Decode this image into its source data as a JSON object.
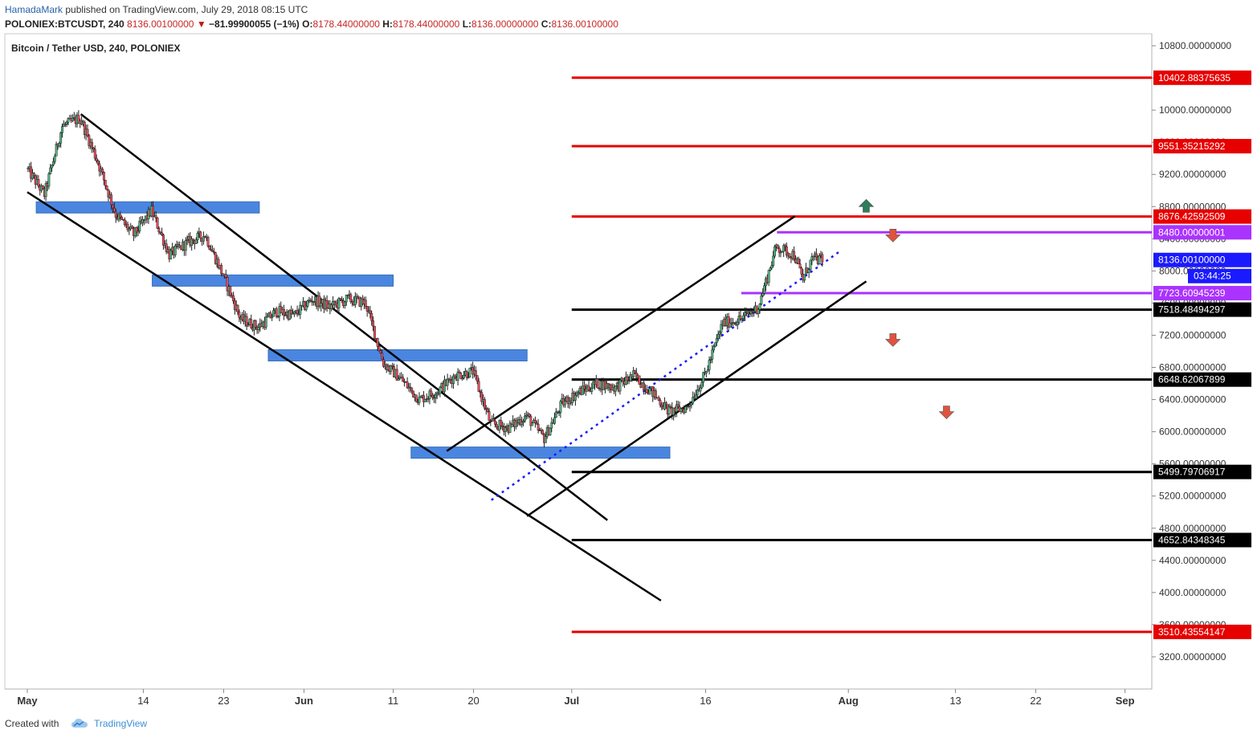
{
  "header": {
    "author": "HamadaMark",
    "published": "published on TradingView.com, July 29, 2018 08:15 UTC",
    "symbol": "POLONIEX:BTCUSDT, 240",
    "last": "8136.00100000",
    "change": "−81.99900055 (−1%)",
    "open_label": "O:",
    "open": "8178.44000000",
    "high_label": "H:",
    "high": "8178.44000000",
    "low_label": "L:",
    "low": "8136.00000000",
    "close_label": "C:",
    "close": "8136.00100000"
  },
  "footer": {
    "created_with": "Created with",
    "brand": "TradingView"
  },
  "chart_data": {
    "type": "candlestick",
    "title": "Bitcoin / Tether USD, 240, POLONIEX",
    "ylim": [
      2800,
      10950
    ],
    "xlim": [
      "2018-05-01",
      "2018-09-04"
    ],
    "y_ticks": [
      "10800.00000000",
      "10400.00000000",
      "10000.00000000",
      "9600.00000000",
      "9200.00000000",
      "8800.00000000",
      "8400.00000000",
      "8000.00000000",
      "7600.00000000",
      "7200.00000000",
      "6800.00000000",
      "6400.00000000",
      "6000.00000000",
      "5600.00000000",
      "5200.00000000",
      "4800.00000000",
      "4400.00000000",
      "4000.00000000",
      "3600.00000000",
      "3200.00000000"
    ],
    "x_ticks": [
      {
        "date": "2018-05-01",
        "label": "May"
      },
      {
        "date": "2018-05-14",
        "label": "14"
      },
      {
        "date": "2018-05-23",
        "label": "23"
      },
      {
        "date": "2018-06-01",
        "label": "Jun"
      },
      {
        "date": "2018-06-11",
        "label": "11"
      },
      {
        "date": "2018-06-20",
        "label": "20"
      },
      {
        "date": "2018-07-01",
        "label": "Jul"
      },
      {
        "date": "2018-07-16",
        "label": "16"
      },
      {
        "date": "2018-08-01",
        "label": "Aug"
      },
      {
        "date": "2018-08-13",
        "label": "13"
      },
      {
        "date": "2018-08-22",
        "label": "22"
      },
      {
        "date": "2018-09-01",
        "label": "Sep"
      }
    ],
    "price_path": [
      [
        "2018-05-01",
        9280
      ],
      [
        "2018-05-03",
        8950
      ],
      [
        "2018-05-05",
        9800
      ],
      [
        "2018-05-07",
        9900
      ],
      [
        "2018-05-09",
        9350
      ],
      [
        "2018-05-11",
        8700
      ],
      [
        "2018-05-13",
        8450
      ],
      [
        "2018-05-15",
        8750
      ],
      [
        "2018-05-17",
        8200
      ],
      [
        "2018-05-19",
        8350
      ],
      [
        "2018-05-21",
        8450
      ],
      [
        "2018-05-23",
        7950
      ],
      [
        "2018-05-25",
        7400
      ],
      [
        "2018-05-27",
        7300
      ],
      [
        "2018-05-29",
        7500
      ],
      [
        "2018-05-31",
        7450
      ],
      [
        "2018-06-02",
        7650
      ],
      [
        "2018-06-04",
        7550
      ],
      [
        "2018-06-06",
        7650
      ],
      [
        "2018-06-08",
        7600
      ],
      [
        "2018-06-10",
        6850
      ],
      [
        "2018-06-12",
        6650
      ],
      [
        "2018-06-14",
        6400
      ],
      [
        "2018-06-16",
        6500
      ],
      [
        "2018-06-18",
        6700
      ],
      [
        "2018-06-20",
        6750
      ],
      [
        "2018-06-22",
        6100
      ],
      [
        "2018-06-24",
        6050
      ],
      [
        "2018-06-26",
        6200
      ],
      [
        "2018-06-28",
        5920
      ],
      [
        "2018-06-30",
        6350
      ],
      [
        "2018-07-02",
        6500
      ],
      [
        "2018-07-04",
        6600
      ],
      [
        "2018-07-06",
        6550
      ],
      [
        "2018-07-08",
        6700
      ],
      [
        "2018-07-10",
        6500
      ],
      [
        "2018-07-12",
        6250
      ],
      [
        "2018-07-14",
        6300
      ],
      [
        "2018-07-16",
        6700
      ],
      [
        "2018-07-18",
        7350
      ],
      [
        "2018-07-20",
        7400
      ],
      [
        "2018-07-22",
        7550
      ],
      [
        "2018-07-24",
        8300
      ],
      [
        "2018-07-26",
        8200
      ],
      [
        "2018-07-27",
        7900
      ],
      [
        "2018-07-28",
        8150
      ],
      [
        "2018-07-29",
        8136
      ]
    ],
    "series": [
      {
        "name": "10402.88375635",
        "value": 10402.88375635,
        "color": "#e60000",
        "from": "2018-07-01"
      },
      {
        "name": "9551.35215292",
        "value": 9551.35215292,
        "color": "#e60000",
        "from": "2018-07-01"
      },
      {
        "name": "8676.42592509",
        "value": 8676.42592509,
        "color": "#e60000",
        "from": "2018-07-01"
      },
      {
        "name": "8480.00000001",
        "value": 8480.00000001,
        "color": "#aa33ff",
        "from": "2018-07-24"
      },
      {
        "name": "7723.60945239",
        "value": 7723.60945239,
        "color": "#aa33ff",
        "from": "2018-07-20"
      },
      {
        "name": "7518.48494297",
        "value": 7518.48494297,
        "color": "#000000",
        "from": "2018-07-01"
      },
      {
        "name": "6648.62067899",
        "value": 6648.62067899,
        "color": "#000000",
        "from": "2018-07-01"
      },
      {
        "name": "5499.79706917",
        "value": 5499.79706917,
        "color": "#000000",
        "from": "2018-07-01"
      },
      {
        "name": "4652.84348345",
        "value": 4652.84348345,
        "color": "#000000",
        "from": "2018-07-01"
      },
      {
        "name": "3510.43554147",
        "value": 3510.43554147,
        "color": "#e60000",
        "from": "2018-07-01"
      }
    ],
    "last_price": {
      "value": 8136.001,
      "label": "8136.00100000",
      "countdown": "03:44:25",
      "color": "#1a1aff"
    },
    "trend_lines": [
      {
        "from": [
          "2018-05-07",
          9950
        ],
        "to": [
          "2018-07-05",
          4900
        ],
        "color": "#000000"
      },
      {
        "from": [
          "2018-05-01",
          8980
        ],
        "to": [
          "2018-07-11",
          3900
        ],
        "color": "#000000"
      },
      {
        "from": [
          "2018-06-17",
          5760
        ],
        "to": [
          "2018-07-26",
          8680
        ],
        "color": "#000000"
      },
      {
        "from": [
          "2018-06-26",
          4950
        ],
        "to": [
          "2018-08-03",
          7870
        ],
        "color": "#000000"
      },
      {
        "from": [
          "2018-06-22",
          5150
        ],
        "to": [
          "2018-07-31",
          8240
        ],
        "color": "#1a1aff",
        "dashed": true
      }
    ],
    "zones": [
      {
        "from": "2018-05-02",
        "to": "2018-05-27",
        "value": 8790,
        "color": "#4a86e0"
      },
      {
        "from": "2018-05-15",
        "to": "2018-06-11",
        "value": 7880,
        "color": "#4a86e0"
      },
      {
        "from": "2018-05-28",
        "to": "2018-06-26",
        "value": 6950,
        "color": "#4a86e0"
      },
      {
        "from": "2018-06-13",
        "to": "2018-07-12",
        "value": 5740,
        "color": "#4a86e0"
      }
    ],
    "arrows": [
      {
        "date": "2018-08-03",
        "value": 8800,
        "direction": "up",
        "color": "#2e7d5b"
      },
      {
        "date": "2018-08-06",
        "value": 8450,
        "direction": "down",
        "color": "#e0533f"
      },
      {
        "date": "2018-08-06",
        "value": 7150,
        "direction": "down",
        "color": "#e0533f"
      },
      {
        "date": "2018-08-12",
        "value": 6250,
        "direction": "down",
        "color": "#e0533f"
      }
    ],
    "candle_colors": {
      "up": "#53b987",
      "down": "#eb4d5c"
    },
    "grid": false,
    "legend": "top-left"
  }
}
